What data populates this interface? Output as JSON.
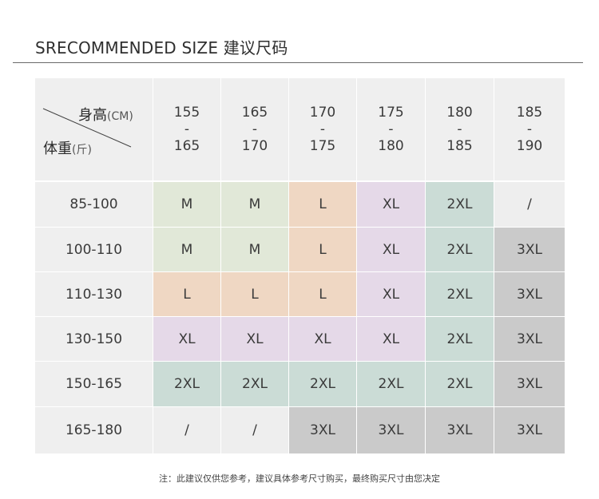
{
  "title": "SRECOMMENDED SIZE 建议尺码",
  "corner": {
    "height_label": "身高",
    "height_unit": "(CM)",
    "weight_label": "体重",
    "weight_unit": "(斤)"
  },
  "height_ranges": [
    {
      "from": "155",
      "sep": "-",
      "to": "165"
    },
    {
      "from": "165",
      "sep": "-",
      "to": "170"
    },
    {
      "from": "170",
      "sep": "-",
      "to": "175"
    },
    {
      "from": "175",
      "sep": "-",
      "to": "180"
    },
    {
      "from": "180",
      "sep": "-",
      "to": "185"
    },
    {
      "from": "185",
      "sep": "-",
      "to": "190"
    }
  ],
  "weight_ranges": [
    "85-100",
    "100-110",
    "110-130",
    "130-150",
    "150-165",
    "165-180"
  ],
  "sizes": [
    [
      "M",
      "M",
      "L",
      "XL",
      "2XL",
      "/"
    ],
    [
      "M",
      "M",
      "L",
      "XL",
      "2XL",
      "3XL"
    ],
    [
      "L",
      "L",
      "L",
      "XL",
      "2XL",
      "3XL"
    ],
    [
      "XL",
      "XL",
      "XL",
      "XL",
      "2XL",
      "3XL"
    ],
    [
      "2XL",
      "2XL",
      "2XL",
      "2XL",
      "2XL",
      "3XL"
    ],
    [
      "/",
      "/",
      "3XL",
      "3XL",
      "3XL",
      "3XL"
    ]
  ],
  "size_colors": {
    "M": "#e1e8d8",
    "L": "#efd7c3",
    "XL": "#e5d9e8",
    "2XL": "#cbdcd6",
    "3XL": "#cacaca",
    "/": "#eeeeee",
    "header": "#efefef"
  },
  "footnote": "注：此建议仅供您参考，建议具体参考尺寸购买，最终购买尺寸由您决定"
}
